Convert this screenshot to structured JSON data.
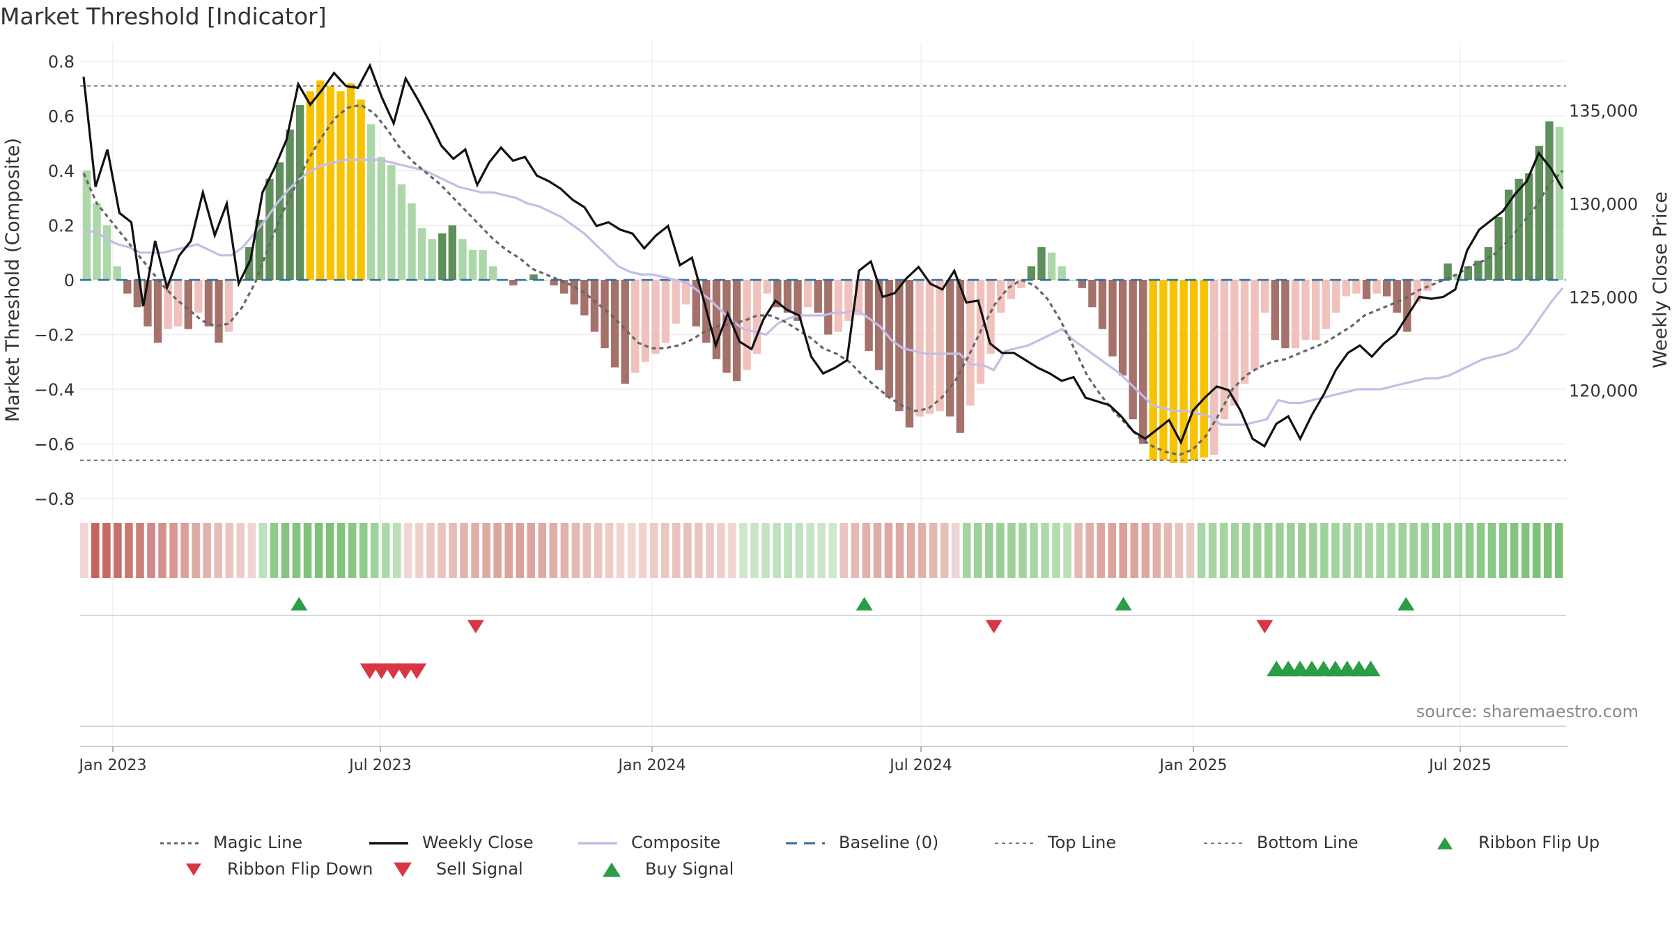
{
  "title": "Market Threshold [Indicator]",
  "source": "source: sharemaestro.com",
  "colors": {
    "magic": "#666666",
    "weekly": "#111111",
    "composite": "#c4bde6",
    "baseline": "#2f6f9f",
    "thresholds": "#777777",
    "bar_pos_light": "#acd7a8",
    "bar_pos_dark": "#5f8f5a",
    "bar_neg_light": "#f0c1bd",
    "bar_neg_dark": "#a4716b",
    "bar_extreme": "#f7c300",
    "buy": "#2a9d47",
    "sell": "#d93645"
  },
  "legend": [
    {
      "key": "magic",
      "label": "Magic Line"
    },
    {
      "key": "weekly",
      "label": "Weekly Close"
    },
    {
      "key": "composite",
      "label": "Composite"
    },
    {
      "key": "baseline",
      "label": "Baseline (0)"
    },
    {
      "key": "top",
      "label": "Top Line"
    },
    {
      "key": "bottom",
      "label": "Bottom Line"
    },
    {
      "key": "flip_up",
      "label": "Ribbon Flip Up"
    },
    {
      "key": "flip_down",
      "label": "Ribbon Flip Down"
    },
    {
      "key": "sell",
      "label": "Sell Signal"
    },
    {
      "key": "buy",
      "label": "Buy Signal"
    }
  ],
  "chart_data": {
    "type": "bar",
    "title": "Market Threshold [Indicator]",
    "ylabel_left": "Market Threshold (Composite)",
    "ylabel_right": "Weekly Close Price",
    "ylim_left": [
      -0.85,
      0.8
    ],
    "yticks_left": [
      "0.8",
      "0.6",
      "0.4",
      "0.2",
      "0",
      "−0.2",
      "−0.4",
      "−0.6",
      "−0.8"
    ],
    "ylim_right": [
      115000,
      138000
    ],
    "yticks_right": [
      "135,000",
      "130,000",
      "125,000",
      "120,000"
    ],
    "x_ticks": [
      "Jan 2023",
      "Jul 2023",
      "Jan 2024",
      "Jul 2024",
      "Jan 2025",
      "Jul 2025"
    ],
    "top_line": 0.71,
    "bottom_line": -0.66,
    "baseline": 0,
    "grid": true,
    "legend_position": "bottom",
    "composite_bars": [
      0.4,
      0.28,
      0.2,
      0.05,
      -0.05,
      -0.1,
      -0.17,
      -0.23,
      -0.18,
      -0.17,
      -0.18,
      -0.12,
      -0.17,
      -0.23,
      -0.19,
      0.0,
      0.12,
      0.22,
      0.37,
      0.43,
      0.55,
      0.64,
      0.69,
      0.73,
      0.71,
      0.69,
      0.72,
      0.66,
      0.57,
      0.45,
      0.42,
      0.35,
      0.28,
      0.19,
      0.15,
      0.17,
      0.2,
      0.15,
      0.11,
      0.11,
      0.05,
      0.0,
      -0.02,
      0.0,
      0.02,
      0.0,
      -0.02,
      -0.05,
      -0.09,
      -0.13,
      -0.19,
      -0.25,
      -0.32,
      -0.38,
      -0.34,
      -0.3,
      -0.27,
      -0.23,
      -0.16,
      -0.09,
      -0.17,
      -0.23,
      -0.29,
      -0.34,
      -0.37,
      -0.33,
      -0.27,
      -0.05,
      -0.1,
      -0.12,
      -0.15,
      -0.1,
      -0.12,
      -0.2,
      -0.19,
      -0.15,
      -0.13,
      -0.26,
      -0.33,
      -0.43,
      -0.48,
      -0.54,
      -0.5,
      -0.49,
      -0.48,
      -0.5,
      -0.56,
      -0.46,
      -0.38,
      -0.27,
      -0.12,
      -0.07,
      -0.03,
      0.05,
      0.12,
      0.1,
      0.05,
      0.0,
      -0.03,
      -0.1,
      -0.18,
      -0.28,
      -0.35,
      -0.51,
      -0.6,
      -0.66,
      -0.66,
      -0.67,
      -0.67,
      -0.66,
      -0.65,
      -0.64,
      -0.51,
      -0.46,
      -0.38,
      -0.33,
      -0.12,
      -0.22,
      -0.25,
      -0.25,
      -0.22,
      -0.22,
      -0.18,
      -0.12,
      -0.06,
      -0.05,
      -0.07,
      -0.05,
      -0.06,
      -0.12,
      -0.19,
      -0.08,
      -0.04,
      0.0,
      0.06,
      0.02,
      0.05,
      0.07,
      0.12,
      0.23,
      0.33,
      0.37,
      0.39,
      0.49,
      0.58,
      0.56
    ],
    "composite_line": [
      0.17,
      0.18,
      0.15,
      0.13,
      0.12,
      0.1,
      0.1,
      0.1,
      0.11,
      0.12,
      0.13,
      0.11,
      0.09,
      0.09,
      0.12,
      0.17,
      0.22,
      0.28,
      0.33,
      0.37,
      0.4,
      0.42,
      0.43,
      0.44,
      0.44,
      0.44,
      0.44,
      0.43,
      0.42,
      0.41,
      0.4,
      0.38,
      0.36,
      0.34,
      0.33,
      0.32,
      0.32,
      0.31,
      0.3,
      0.28,
      0.27,
      0.25,
      0.23,
      0.2,
      0.17,
      0.13,
      0.09,
      0.05,
      0.03,
      0.02,
      0.02,
      0.01,
      0.0,
      -0.01,
      -0.04,
      -0.07,
      -0.11,
      -0.15,
      -0.18,
      -0.19,
      -0.2,
      -0.16,
      -0.14,
      -0.13,
      -0.13,
      -0.13,
      -0.12,
      -0.12,
      -0.11,
      -0.14,
      -0.17,
      -0.22,
      -0.25,
      -0.26,
      -0.27,
      -0.27,
      -0.27,
      -0.27,
      -0.31,
      -0.31,
      -0.33,
      -0.26,
      -0.25,
      -0.24,
      -0.22,
      -0.2,
      -0.18,
      -0.22,
      -0.25,
      -0.28,
      -0.31,
      -0.34,
      -0.38,
      -0.42,
      -0.46,
      -0.47,
      -0.48,
      -0.48,
      -0.49,
      -0.5,
      -0.53,
      -0.53,
      -0.53,
      -0.52,
      -0.51,
      -0.44,
      -0.45,
      -0.45,
      -0.44,
      -0.43,
      -0.42,
      -0.41,
      -0.4,
      -0.4,
      -0.4,
      -0.39,
      -0.38,
      -0.37,
      -0.36,
      -0.36,
      -0.35,
      -0.33,
      -0.31,
      -0.29,
      -0.28,
      -0.27,
      -0.25,
      -0.2,
      -0.14,
      -0.08,
      -0.03
    ],
    "magic_line": [
      0.39,
      0.28,
      0.22,
      0.16,
      0.1,
      0.04,
      -0.02,
      -0.07,
      -0.11,
      -0.15,
      -0.17,
      -0.16,
      -0.1,
      -0.01,
      0.12,
      0.24,
      0.34,
      0.44,
      0.52,
      0.59,
      0.63,
      0.64,
      0.61,
      0.55,
      0.48,
      0.43,
      0.39,
      0.35,
      0.3,
      0.25,
      0.2,
      0.15,
      0.11,
      0.08,
      0.04,
      0.02,
      0.0,
      -0.02,
      -0.05,
      -0.09,
      -0.13,
      -0.18,
      -0.23,
      -0.25,
      -0.25,
      -0.24,
      -0.22,
      -0.19,
      -0.17,
      -0.16,
      -0.15,
      -0.13,
      -0.13,
      -0.15,
      -0.18,
      -0.21,
      -0.25,
      -0.27,
      -0.3,
      -0.35,
      -0.39,
      -0.43,
      -0.46,
      -0.48,
      -0.47,
      -0.43,
      -0.37,
      -0.28,
      -0.18,
      -0.09,
      -0.03,
      0.0,
      -0.02,
      -0.07,
      -0.15,
      -0.25,
      -0.35,
      -0.42,
      -0.48,
      -0.53,
      -0.58,
      -0.61,
      -0.63,
      -0.64,
      -0.62,
      -0.57,
      -0.49,
      -0.4,
      -0.35,
      -0.32,
      -0.3,
      -0.29,
      -0.27,
      -0.25,
      -0.23,
      -0.2,
      -0.17,
      -0.13,
      -0.11,
      -0.09,
      -0.07,
      -0.04,
      -0.02,
      0.0,
      0.02,
      0.05,
      0.07,
      0.1,
      0.15,
      0.21,
      0.27,
      0.35,
      0.4
    ],
    "weekly_close": [
      136800,
      130900,
      132900,
      129500,
      129000,
      124500,
      128000,
      125500,
      127200,
      128000,
      130600,
      128300,
      130000,
      125700,
      127000,
      130600,
      131900,
      133400,
      136400,
      135300,
      136100,
      137000,
      136300,
      136200,
      137400,
      135700,
      134300,
      136700,
      135600,
      134400,
      133100,
      132400,
      132900,
      131000,
      132200,
      133000,
      132300,
      132500,
      131500,
      131200,
      130800,
      130200,
      129800,
      128800,
      129000,
      128600,
      128400,
      127600,
      128300,
      128800,
      126700,
      127100,
      124800,
      122400,
      124100,
      122600,
      122200,
      123800,
      124800,
      124300,
      124000,
      121800,
      120900,
      121200,
      121600,
      126400,
      126900,
      125000,
      125200,
      126000,
      126600,
      125700,
      125400,
      126400,
      124700,
      124800,
      122500,
      122000,
      122000,
      121600,
      121200,
      120900,
      120500,
      120700,
      119600,
      119400,
      119200,
      118600,
      117800,
      117400,
      117900,
      118400,
      117200,
      118900,
      119600,
      120200,
      120000,
      118900,
      117400,
      117000,
      118200,
      118600,
      117400,
      118700,
      119800,
      121100,
      122000,
      122400,
      121800,
      122500,
      123000,
      124000,
      125000,
      124900,
      125000,
      125400,
      127500,
      128600,
      129100,
      129600,
      130500,
      131200,
      132700,
      131900,
      130800
    ],
    "ribbon": [
      "#f2d5d3",
      "#c46560",
      "#c76964",
      "#c8706b",
      "#cb7772",
      "#ce7e79",
      "#d2878a",
      "#d59089",
      "#d89790",
      "#dba09a",
      "#dfa9a3",
      "#e2b3ad",
      "#e6bcb6",
      "#e9c5c0",
      "#eccdc9",
      "#f0d6d2",
      "#bfe0bc",
      "#8fcb8b",
      "#84c480",
      "#82c37e",
      "#80c27c",
      "#7dc179",
      "#7dc179",
      "#82c37e",
      "#87c683",
      "#8fcb8b",
      "#9ed29a",
      "#add8a9",
      "#bcdfb9",
      "#f2d5d3",
      "#efd0cd",
      "#ecc9c5",
      "#e9c3be",
      "#e6bcb6",
      "#e3b4ae",
      "#e0ada7",
      "#ddaaa3",
      "#dba69f",
      "#daa39c",
      "#daa39c",
      "#dba6a0",
      "#dda9a3",
      "#dfaea8",
      "#e1b3ad",
      "#e4b9b3",
      "#e7bfba",
      "#eac5c0",
      "#edcbc7",
      "#f0d2ce",
      "#f2d7d4",
      "#f0d2ce",
      "#edcbc7",
      "#ebc7c2",
      "#e9c3be",
      "#e8c1bc",
      "#eac5c0",
      "#ecc9c5",
      "#efcfcb",
      "#f1d4d0",
      "#cde7ca",
      "#c9e5c6",
      "#c5e3c2",
      "#c1e1be",
      "#bfe0bc",
      "#c3e2c0",
      "#c7e4c4",
      "#cbe6c8",
      "#cfe8cc",
      "#eac5c0",
      "#e5b9b3",
      "#e2b1ab",
      "#e0aca6",
      "#dea8a2",
      "#dea7a1",
      "#dfaba5",
      "#e1b1ab",
      "#e4b7b1",
      "#e7beb8",
      "#ead6d2",
      "#a4d4a0",
      "#9dd199",
      "#9ad097",
      "#9ad097",
      "#9dd199",
      "#a2d39e",
      "#a8d6a4",
      "#aed9aa",
      "#b4dcb0",
      "#bbdfb7",
      "#e5b9b3",
      "#e1afa9",
      "#dea7a1",
      "#dca39d",
      "#dba09a",
      "#dca39d",
      "#dea7a1",
      "#e1afa9",
      "#e5b9b3",
      "#e9c3be",
      "#eccac6",
      "#a8d6a4",
      "#a6d5a2",
      "#a4d4a0",
      "#a2d39e",
      "#a0d29c",
      "#9ed19a",
      "#9dd199",
      "#9cd098",
      "#9cd098",
      "#9cd098",
      "#9ed19a",
      "#a0d29c",
      "#a2d39e",
      "#a4d4a0",
      "#a6d5a2",
      "#a8d6a4",
      "#a6d5a2",
      "#a4d4a0",
      "#a0d29c",
      "#9dd199",
      "#9ad097",
      "#97ce94",
      "#95cd92",
      "#92cc8f",
      "#8fcb8b",
      "#8ccb88",
      "#89c985",
      "#86c882",
      "#84c480",
      "#82c37e",
      "#80c27c",
      "#7dc179",
      "#7bc077"
    ],
    "ribbon_flip_up_weeks": [
      18,
      66,
      88,
      112
    ],
    "ribbon_flip_down_weeks": [
      33,
      77,
      100
    ],
    "sell_signal_weeks": [
      24,
      25,
      26,
      27,
      28
    ],
    "buy_signal_weeks": [
      101,
      102,
      103,
      104,
      105,
      106,
      107,
      108,
      109
    ]
  }
}
